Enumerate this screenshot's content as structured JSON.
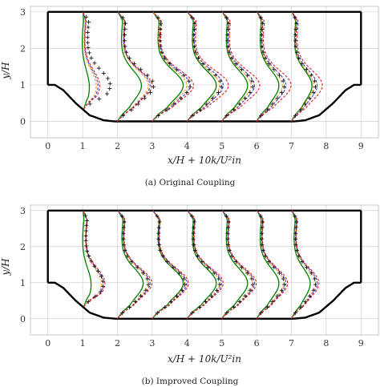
{
  "colors": {
    "walls": "#000000",
    "grid": "#d0d0d0",
    "profile_green": "#008000",
    "profile_red": "#e41a1c",
    "profile_orange": "#ff9a1a",
    "profile_blue": "#3a3ad6",
    "markers": "#000000"
  },
  "chart_data": [
    {
      "type": "line",
      "caption": "(a) Original Coupling",
      "xlabel": "x/H + 10k/U²in",
      "ylabel": "y/H",
      "xlim": [
        -0.5,
        9.5
      ],
      "ylim": [
        -0.45,
        3.15
      ],
      "xticks": [
        "0",
        "1",
        "2",
        "3",
        "4",
        "5",
        "6",
        "7",
        "8",
        "9"
      ],
      "yticks": [
        "0",
        "1",
        "2",
        "3"
      ],
      "grid": true,
      "geometry": {
        "upper_wall": [
          [
            0,
            3
          ],
          [
            9,
            3
          ]
        ],
        "left_wall": [
          [
            0,
            3
          ],
          [
            0,
            1
          ]
        ],
        "right_wall": [
          [
            9,
            3
          ],
          [
            9,
            1
          ]
        ],
        "hill_profile": [
          [
            0,
            1
          ],
          [
            0.2,
            1
          ],
          [
            0.45,
            0.85
          ],
          [
            0.8,
            0.5
          ],
          [
            1.2,
            0.17
          ],
          [
            1.6,
            0.03
          ],
          [
            1.93,
            0
          ],
          [
            7.07,
            0
          ],
          [
            7.4,
            0.03
          ],
          [
            7.8,
            0.17
          ],
          [
            8.2,
            0.5
          ],
          [
            8.55,
            0.85
          ],
          [
            8.8,
            1
          ],
          [
            9,
            1
          ]
        ]
      },
      "station_x": [
        1,
        2,
        3,
        4,
        5,
        6,
        7
      ],
      "profile_peak_offsets": {
        "green": [
          0.15,
          0.65,
          0.85,
          0.8,
          0.7,
          0.6,
          0.55
        ],
        "red": [
          0.45,
          0.95,
          1.15,
          1.15,
          1.05,
          0.95,
          0.85
        ],
        "orange": [
          0.35,
          0.85,
          0.95,
          0.9,
          0.8,
          0.7,
          0.6
        ],
        "blue": [
          0.4,
          0.9,
          1.05,
          1.0,
          0.9,
          0.8,
          0.7
        ],
        "markers": [
          0.75,
          1.0,
          1.05,
          0.95,
          0.85,
          0.75,
          0.65
        ]
      }
    },
    {
      "type": "line",
      "caption": "(b) Improved Coupling",
      "xlabel": "x/H + 10k/U²in",
      "ylabel": "y/H",
      "xlim": [
        -0.5,
        9.5
      ],
      "ylim": [
        -0.45,
        3.15
      ],
      "xticks": [
        "0",
        "1",
        "2",
        "3",
        "4",
        "5",
        "6",
        "7",
        "8",
        "9"
      ],
      "yticks": [
        "0",
        "1",
        "2",
        "3"
      ],
      "grid": true,
      "geometry": {
        "upper_wall": [
          [
            0,
            3
          ],
          [
            9,
            3
          ]
        ],
        "left_wall": [
          [
            0,
            3
          ],
          [
            0,
            1
          ]
        ],
        "right_wall": [
          [
            9,
            3
          ],
          [
            9,
            1
          ]
        ],
        "hill_profile": [
          [
            0,
            1
          ],
          [
            0.2,
            1
          ],
          [
            0.45,
            0.85
          ],
          [
            0.8,
            0.5
          ],
          [
            1.2,
            0.17
          ],
          [
            1.6,
            0.03
          ],
          [
            1.93,
            0
          ],
          [
            7.07,
            0
          ],
          [
            7.4,
            0.03
          ],
          [
            7.8,
            0.17
          ],
          [
            8.2,
            0.5
          ],
          [
            8.55,
            0.85
          ],
          [
            8.8,
            1
          ],
          [
            9,
            1
          ]
        ]
      },
      "station_x": [
        1,
        2,
        3,
        4,
        5,
        6,
        7
      ],
      "profile_peak_offsets": {
        "green": [
          0.2,
          0.7,
          0.85,
          0.8,
          0.7,
          0.6,
          0.5
        ],
        "red": [
          0.6,
          0.95,
          1.0,
          1.0,
          0.95,
          0.85,
          0.75
        ],
        "orange": [
          0.5,
          0.85,
          0.9,
          0.9,
          0.85,
          0.75,
          0.65
        ],
        "blue": [
          0.55,
          0.9,
          0.95,
          0.95,
          0.9,
          0.8,
          0.7
        ],
        "markers": [
          0.55,
          0.85,
          0.9,
          0.9,
          0.85,
          0.75,
          0.65
        ]
      }
    }
  ]
}
